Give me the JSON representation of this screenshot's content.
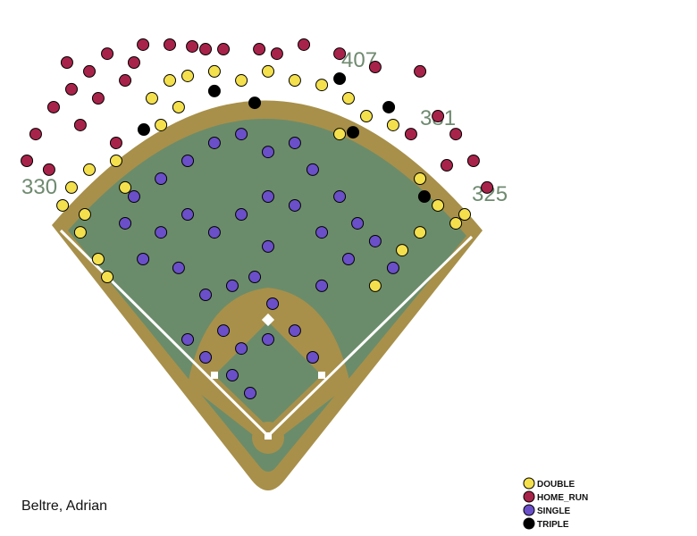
{
  "chart_data": {
    "type": "scatter",
    "title": "Beltre, Adrian",
    "annotations": [
      "330",
      "407",
      "381",
      "325"
    ],
    "xlim": [
      0,
      250
    ],
    "ylim": [
      0,
      250
    ],
    "series": [
      {
        "name": "DOUBLE",
        "color": "#f4e04d",
        "x": [
          20.5,
          29.5,
          38.6,
          43.2,
          25,
          34.1,
          47.7,
          52.3,
          65.9,
          75,
          84.1,
          97.7,
          111.4,
          125,
          138.6,
          152.3,
          165.9,
          175,
          161.4,
          188.6,
          202.3,
          211.4,
          220.5,
          202.3,
          193.2,
          179.5,
          70.5,
          79.5,
          225,
          31.8
        ],
        "y": [
          82.7,
          96.4,
          110,
          119.1,
          73.6,
          64.5,
          60,
          73.6,
          28.2,
          19.1,
          16.8,
          14.5,
          19.1,
          14.5,
          19.1,
          21.4,
          28.2,
          37.3,
          46.4,
          41.8,
          69.1,
          82.7,
          91.8,
          96.4,
          105.5,
          123.6,
          41.8,
          32.7,
          87.3,
          87.3
        ]
      },
      {
        "name": "HOME_RUN",
        "color": "#a8234a",
        "x": [
          6.8,
          15.9,
          25,
          34.1,
          22.7,
          43.2,
          52.3,
          61.4,
          75,
          86.4,
          102.3,
          120.5,
          129.5,
          143.2,
          161.4,
          179.5,
          202.3,
          211.4,
          220.5,
          229.5,
          236.4,
          215.9,
          13.6,
          2.3,
          29.5,
          38.6,
          47.7,
          56.8,
          93.2,
          197.7
        ],
        "y": [
          46.4,
          32.7,
          23.6,
          14.5,
          10,
          5.5,
          19.1,
          0.9,
          0.9,
          1.8,
          3.2,
          3.2,
          5.5,
          0.9,
          5.5,
          12.3,
          14.5,
          37.3,
          46.4,
          60,
          73.6,
          62.3,
          64.5,
          60,
          41.8,
          28.2,
          50.9,
          10,
          3.2,
          46.4
        ]
      },
      {
        "name": "SINGLE",
        "color": "#6a4fc8",
        "x": [
          56.8,
          70.5,
          84.1,
          97.7,
          111.4,
          125,
          138.6,
          147.7,
          161.4,
          170.5,
          179.5,
          165.9,
          152.3,
          138.6,
          125,
          111.4,
          97.7,
          84.1,
          70.5,
          61.4,
          79.5,
          93.2,
          106.8,
          118.2,
          127.3,
          102.3,
          93.2,
          106.8,
          115.9,
          125,
          138.6,
          147.7,
          84.1,
          111.4,
          152.3,
          188.6,
          52.3,
          125
        ],
        "y": [
          78.2,
          69.1,
          60,
          50.9,
          46.4,
          55.5,
          50.9,
          64.5,
          78.2,
          91.8,
          100.9,
          110,
          96.4,
          82.7,
          78.2,
          87.3,
          96.4,
          87.3,
          96.4,
          110,
          114.5,
          128.2,
          123.6,
          119.1,
          132.7,
          146.4,
          160,
          169.1,
          178.2,
          150.9,
          146.4,
          160,
          150.9,
          155.5,
          123.6,
          114.5,
          91.8,
          103.6
        ]
      },
      {
        "name": "TRIPLE",
        "color": "#000000",
        "x": [
          61.8,
          97.7,
          118.2,
          161.4,
          186.4,
          168.2,
          204.5
        ],
        "y": [
          44.1,
          24.5,
          30.5,
          18.2,
          32.7,
          45.5,
          78.2
        ]
      }
    ]
  }
}
